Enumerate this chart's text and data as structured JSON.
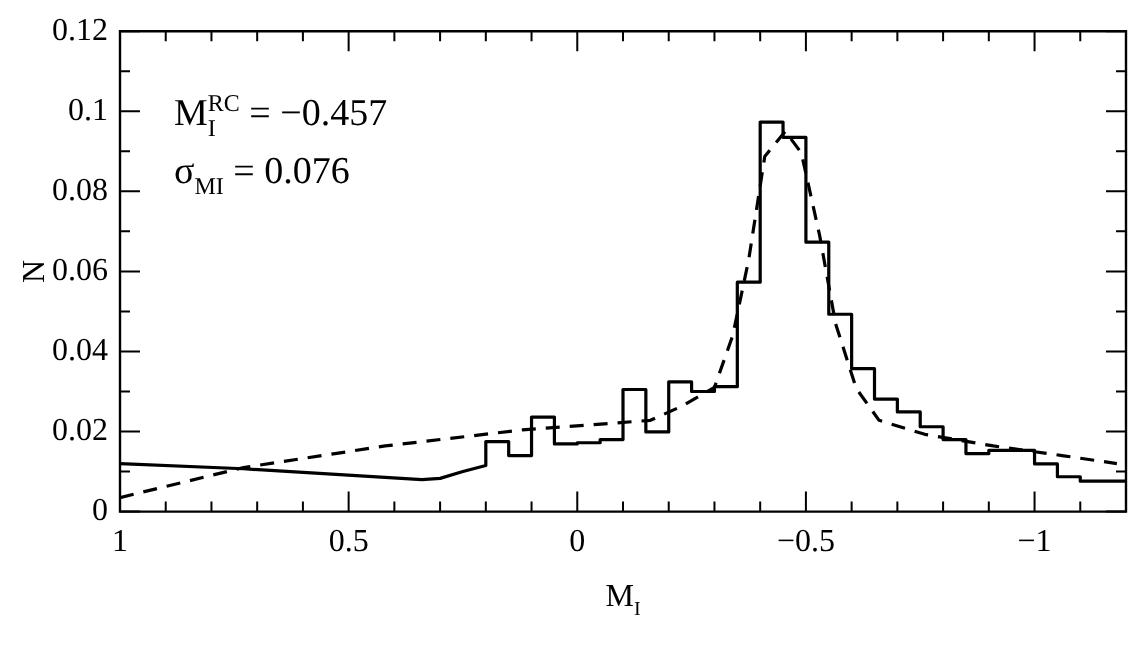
{
  "chart_data": {
    "type": "line",
    "xlabel": "M$_{I}$",
    "ylabel": "N",
    "xlim": [
      1,
      -1.2
    ],
    "ylim": [
      0,
      0.12
    ],
    "xticks": [
      1,
      0.5,
      0,
      {
        "value": -0.5,
        "label": "−0.5"
      },
      {
        "value": -1,
        "label": "−1"
      },
      {
        "value": 0.9,
        "label": null
      },
      {
        "value": 0.8,
        "label": null
      },
      {
        "value": 0.7,
        "label": null
      },
      {
        "value": 0.6,
        "label": null
      },
      {
        "value": 0.4,
        "label": null
      },
      {
        "value": 0.3,
        "label": null
      },
      {
        "value": 0.2,
        "label": null
      },
      {
        "value": 0.1,
        "label": null
      },
      {
        "value": -0.1,
        "label": null
      },
      {
        "value": -0.2,
        "label": null
      },
      {
        "value": -0.3,
        "label": null
      },
      {
        "value": -0.4,
        "label": null
      },
      {
        "value": -0.6,
        "label": null
      },
      {
        "value": -0.7,
        "label": null
      },
      {
        "value": -0.8,
        "label": null
      },
      {
        "value": -0.9,
        "label": null
      },
      {
        "value": -1.1,
        "label": null
      }
    ],
    "yticks": [
      0,
      0.02,
      0.04,
      0.06,
      0.08,
      0.1,
      0.12,
      {
        "value": 0.01,
        "label": null
      },
      {
        "value": 0.03,
        "label": null
      },
      {
        "value": 0.05,
        "label": null
      },
      {
        "value": 0.07,
        "label": null
      },
      {
        "value": 0.09,
        "label": null
      },
      {
        "value": 0.11,
        "label": null
      }
    ],
    "grid": false,
    "legend": false,
    "marker": "none",
    "annotations": [
      "M$^{RC}$$_{I}$ = −0.457",
      "σ$_{MI}$ = 0.076"
    ],
    "series": [
      {
        "color": "#000000",
        "line_style": "solid",
        "x": [
          1,
          0.73,
          0.34,
          0.3,
          0.25,
          0.2,
          0.2,
          0.15,
          0.15,
          0.1,
          0.1,
          0.05,
          0.05,
          0,
          0,
          -0.05,
          -0.05,
          -0.1,
          -0.1,
          -0.15,
          -0.15,
          -0.2,
          -0.2,
          -0.25,
          -0.25,
          -0.3,
          -0.3,
          -0.35,
          -0.35,
          -0.4,
          -0.4,
          -0.45,
          -0.45,
          -0.5,
          -0.5,
          -0.55,
          -0.55,
          -0.6,
          -0.6,
          -0.65,
          -0.65,
          -0.7,
          -0.7,
          -0.75,
          -0.75,
          -0.8,
          -0.8,
          -0.85,
          -0.85,
          -0.9,
          -0.9,
          -1,
          -1,
          -1.05,
          -1.05,
          -1.1,
          -1.1,
          -1.2
        ],
        "values": [
          0.012,
          0.0107,
          0.008,
          0.0083,
          0.01,
          0.0115,
          0.0175,
          0.0175,
          0.014,
          0.014,
          0.0236,
          0.0236,
          0.0169,
          0.0169,
          0.0172,
          0.0172,
          0.018,
          0.018,
          0.0305,
          0.0305,
          0.0199,
          0.0199,
          0.0324,
          0.0324,
          0.03,
          0.03,
          0.0312,
          0.0312,
          0.0573,
          0.0573,
          0.0973,
          0.0973,
          0.0935,
          0.0935,
          0.0673,
          0.0673,
          0.0493,
          0.0493,
          0.0357,
          0.0357,
          0.0281,
          0.0281,
          0.0249,
          0.0249,
          0.0212,
          0.0212,
          0.018,
          0.018,
          0.0145,
          0.0145,
          0.0153,
          0.0153,
          0.0119,
          0.0119,
          0.0087,
          0.0087,
          0.0076,
          0.0076
        ]
      },
      {
        "color": "#000000",
        "line_style": "dashed",
        "x": [
          1,
          0.73,
          0.42,
          0.12,
          -0.16,
          -0.23,
          -0.3,
          -0.34,
          -0.375,
          -0.41,
          -0.455,
          -0.49,
          -0.53,
          -0.565,
          -0.61,
          -0.66,
          -0.76,
          -0.91,
          -1.06,
          -1.18
        ],
        "values": [
          0.0035,
          0.011,
          0.0164,
          0.0204,
          0.0228,
          0.0264,
          0.031,
          0.044,
          0.063,
          0.0887,
          0.095,
          0.0896,
          0.069,
          0.0469,
          0.0308,
          0.0228,
          0.0193,
          0.0164,
          0.014,
          0.012
        ]
      }
    ]
  }
}
